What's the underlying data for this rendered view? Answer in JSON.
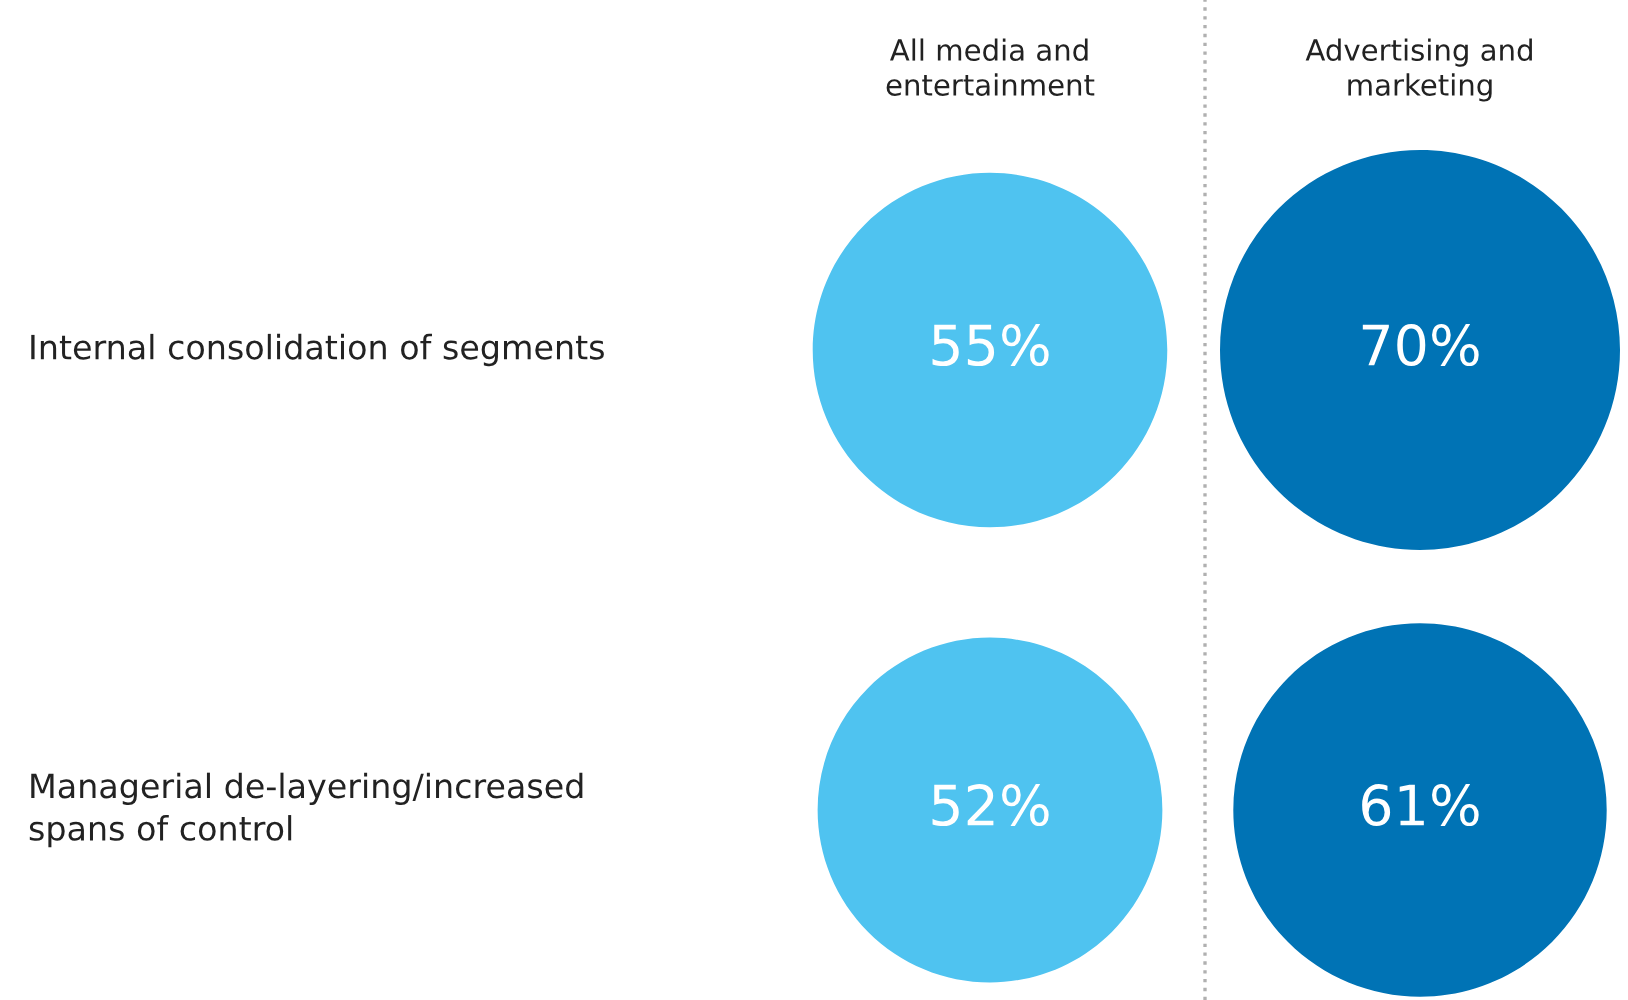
{
  "chart_data": {
    "type": "other",
    "categories": [
      "All media and\nentertainment",
      "Advertising and\nmarketing"
    ],
    "y_categories": [
      "Internal consolidation of segments",
      "Managerial de-layering/increased\nspans of control"
    ],
    "series": [
      {
        "values": [
          55,
          70
        ],
        "value_labels": [
          "55%",
          "70%"
        ],
        "colors": [
          "#4fc3f0",
          "#0073b5"
        ]
      },
      {
        "values": [
          52,
          61
        ],
        "value_labels": [
          "52%",
          "61%"
        ],
        "colors": [
          "#4fc3f0",
          "#0073b5"
        ]
      }
    ]
  }
}
